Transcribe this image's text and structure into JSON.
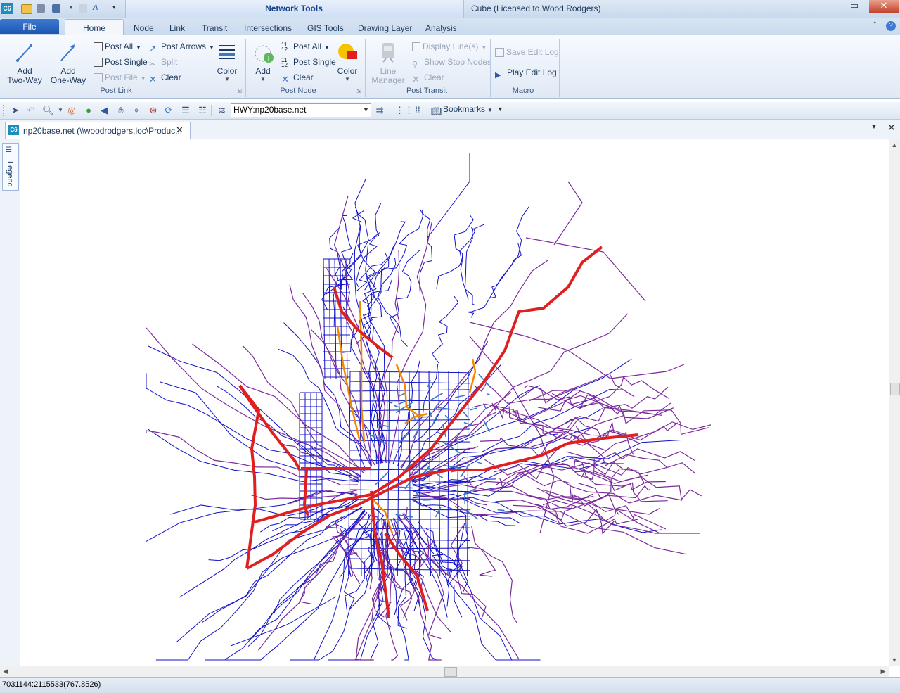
{
  "app": {
    "title": "Cube (Licensed to Wood Rodgers)",
    "context_tab_title": "Network Tools",
    "logo_text": "C6"
  },
  "tabs": {
    "file": "File",
    "items": [
      "Home",
      "Node",
      "Link",
      "Transit",
      "Intersections",
      "GIS Tools",
      "Drawing Layer",
      "Analysis"
    ],
    "active": "Home"
  },
  "ribbon": {
    "post_link": {
      "label": "Post Link",
      "add_two_way": "Add\nTwo-Way",
      "add_one_way": "Add\nOne-Way",
      "post_all": "Post All",
      "post_single": "Post Single",
      "post_file": "Post File",
      "post_arrows": "Post Arrows",
      "split": "Split",
      "clear": "Clear",
      "color": "Color"
    },
    "post_node": {
      "label": "Post Node",
      "add": "Add",
      "post_all": "Post All",
      "post_single": "Post Single",
      "clear": "Clear",
      "color": "Color"
    },
    "post_transit": {
      "label": "Post Transit",
      "line_manager": "Line\nManager",
      "display_lines": "Display Line(s)",
      "show_stop_nodes": "Show Stop Nodes",
      "clear": "Clear"
    },
    "macro": {
      "label": "Macro",
      "save_edit_log": "Save Edit Log",
      "play_edit_log": "Play Edit Log"
    }
  },
  "toolbar": {
    "layer_value": "HWY:np20base.net",
    "bookmarks": "Bookmarks"
  },
  "document": {
    "tab_label": "np20base.net (\\\\woodrodgers.loc\\Produc...",
    "legend_label": "Legend"
  },
  "status": {
    "coords": "7031144:2115533(767.8526)"
  },
  "colors": {
    "freeway": "#e02020",
    "ramp": "#f08a00",
    "arterial": "#1010c8",
    "collector": "#7a2a9a",
    "local": "#3a78c8"
  }
}
